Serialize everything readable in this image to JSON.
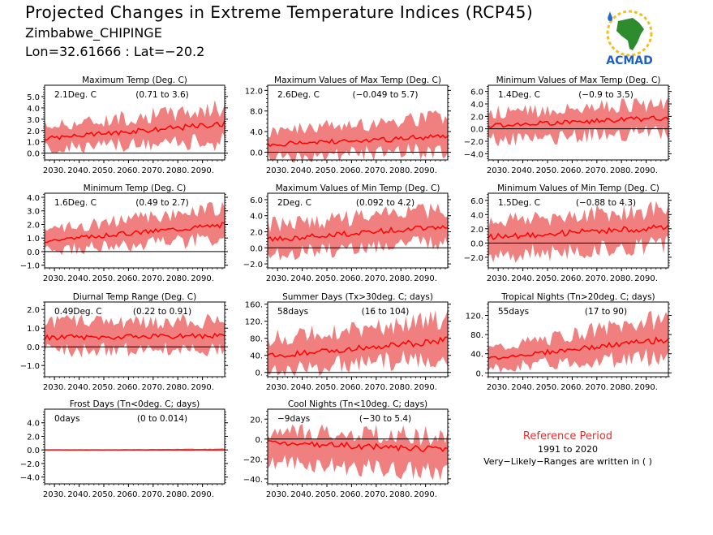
{
  "header": {
    "title": "Projected Changes in Extreme Temperature Indices (RCP45)",
    "location": "Zimbabwe_CHIPINGE",
    "coords": "Lon=32.61666 : Lat=−20.2"
  },
  "logo": {
    "label": "ACMAD",
    "icon": "africa-map-icon"
  },
  "reference": {
    "title": "Reference Period",
    "years": "1991 to 2020",
    "note": "Very−Likely−Ranges are written in ( )"
  },
  "colors": {
    "band": "#f08080",
    "line": "#ff0000",
    "axis": "#000000"
  },
  "x_ticks": [
    "2030.",
    "2040.",
    "2050.",
    "2060.",
    "2070.",
    "2080.",
    "2090."
  ],
  "chart_data": [
    {
      "type": "line",
      "title": "Maximum Temp (Deg. C)",
      "value": "2.1Deg. C",
      "range": "(0.71 to 3.6)",
      "ylim": [
        -0.6,
        6.0
      ],
      "yticks": [
        0,
        1,
        2,
        3,
        4,
        5
      ],
      "yticklabels": [
        "0.0",
        "1.0",
        "2.0",
        "3.0",
        "4.0",
        "5.0"
      ],
      "x": [
        2026,
        2099
      ],
      "median": [
        1.3,
        2.6
      ],
      "low": [
        0.4,
        1.0
      ],
      "high": [
        2.4,
        4.0
      ]
    },
    {
      "type": "line",
      "title": "Maximum Values of Max Temp (Deg. C)",
      "value": "2.6Deg. C",
      "range": "(−0.049 to 5.7)",
      "ylim": [
        -1.5,
        13
      ],
      "yticks": [
        0,
        4,
        8,
        12
      ],
      "yticklabels": [
        "0.0",
        "4.0",
        "8.0",
        "12.0"
      ],
      "x": [
        2026,
        2099
      ],
      "median": [
        1.5,
        3.0
      ],
      "low": [
        -0.8,
        0.3
      ],
      "high": [
        4.0,
        7.0
      ]
    },
    {
      "type": "line",
      "title": "Minimum Values of Max Temp (Deg. C)",
      "value": "1.4Deg. C",
      "range": "(−0.9 to 3.5)",
      "ylim": [
        -5,
        7
      ],
      "yticks": [
        -4,
        -2,
        0,
        2,
        4,
        6
      ],
      "yticklabels": [
        "−4.0",
        "−2.0",
        "0.0",
        "2.0",
        "4.0",
        "6.0"
      ],
      "x": [
        2026,
        2099
      ],
      "median": [
        0.5,
        1.8
      ],
      "low": [
        -1.8,
        -0.5
      ],
      "high": [
        2.5,
        4.0
      ]
    },
    {
      "type": "line",
      "title": "Minimum Temp (Deg. C)",
      "value": "1.6Deg. C",
      "range": "(0.49 to 2.7)",
      "ylim": [
        -1.2,
        4.3
      ],
      "yticks": [
        -1,
        0,
        1,
        2,
        3,
        4
      ],
      "yticklabels": [
        "−1.0",
        "0.0",
        "1.0",
        "2.0",
        "3.0",
        "4.0"
      ],
      "x": [
        2026,
        2099
      ],
      "median": [
        0.8,
        2.0
      ],
      "low": [
        0.1,
        0.9
      ],
      "high": [
        1.6,
        3.2
      ]
    },
    {
      "type": "line",
      "title": "Maximum Values of Min Temp (Deg. C)",
      "value": "2Deg. C",
      "range": "(0.092 to 4.2)",
      "ylim": [
        -2.5,
        6.8
      ],
      "yticks": [
        -2,
        0,
        2,
        4,
        6
      ],
      "yticklabels": [
        "−2.0",
        "0.0",
        "2.0",
        "4.0",
        "6.0"
      ],
      "x": [
        2026,
        2099
      ],
      "median": [
        1.0,
        2.7
      ],
      "low": [
        -0.8,
        0.8
      ],
      "high": [
        2.8,
        4.8
      ]
    },
    {
      "type": "line",
      "title": "Minimum Values of Min Temp (Deg. C)",
      "value": "1.5Deg. C",
      "range": "(−0.88 to 4.3)",
      "ylim": [
        -3.5,
        7
      ],
      "yticks": [
        -2,
        0,
        2,
        4,
        6
      ],
      "yticklabels": [
        "−2.0",
        "0.0",
        "2.0",
        "4.0",
        "6.0"
      ],
      "x": [
        2026,
        2099
      ],
      "median": [
        0.8,
        2.2
      ],
      "low": [
        -1.8,
        -0.2
      ],
      "high": [
        3.0,
        4.8
      ]
    },
    {
      "type": "line",
      "title": "Diurnal Temp Range (Deg. C)",
      "value": "0.49Deg. C",
      "range": "(0.22 to 0.91)",
      "ylim": [
        -1.6,
        2.4
      ],
      "yticks": [
        -1,
        0,
        1,
        2
      ],
      "yticklabels": [
        "−1.0",
        "0.0",
        "1.0",
        "2.0"
      ],
      "x": [
        2026,
        2099
      ],
      "median": [
        0.5,
        0.6
      ],
      "low": [
        -0.2,
        -0.1
      ],
      "high": [
        1.3,
        1.4
      ]
    },
    {
      "type": "line",
      "title": "Summer Days (Tx>30deg. C; days)",
      "value": "58days",
      "range": "(16 to 104)",
      "ylim": [
        -10,
        165
      ],
      "yticks": [
        0,
        40,
        80,
        120,
        160
      ],
      "yticklabels": [
        "0.",
        "40.",
        "80.",
        "120.",
        "160."
      ],
      "x": [
        2026,
        2099
      ],
      "median": [
        38,
        75
      ],
      "low": [
        5,
        35
      ],
      "high": [
        80,
        125
      ]
    },
    {
      "type": "line",
      "title": "Tropical Nights (Tn>20deg. C; days)",
      "value": "55days",
      "range": "(17 to 90)",
      "ylim": [
        -8,
        148
      ],
      "yticks": [
        0,
        40,
        80,
        120
      ],
      "yticklabels": [
        "0.",
        "40.",
        "80.",
        "120."
      ],
      "x": [
        2026,
        2099
      ],
      "median": [
        30,
        70
      ],
      "low": [
        10,
        35
      ],
      "high": [
        50,
        115
      ]
    },
    {
      "type": "line",
      "title": "Frost Days (Tn<0deg. C; days)",
      "value": "0days",
      "range": "(0 to 0.014)",
      "ylim": [
        -5,
        6
      ],
      "yticks": [
        -4,
        -2,
        0,
        2,
        4
      ],
      "yticklabels": [
        "−4.0",
        "−2.0",
        "0.0",
        "2.0",
        "4.0"
      ],
      "x": [
        2026,
        2099
      ],
      "median": [
        0,
        0
      ],
      "low": [
        0,
        0
      ],
      "high": [
        0,
        0.2
      ]
    },
    {
      "type": "line",
      "title": "Cool Nights (Tn<10deg. C; days)",
      "value": "−9days",
      "range": "(−30 to 5.4)",
      "ylim": [
        -45,
        30
      ],
      "yticks": [
        -40,
        -20,
        0,
        20
      ],
      "yticklabels": [
        "−40.",
        "−20.",
        "0.",
        "20."
      ],
      "x": [
        2026,
        2099
      ],
      "median": [
        -3,
        -11
      ],
      "low": [
        -22,
        -35
      ],
      "high": [
        8,
        3
      ]
    }
  ]
}
